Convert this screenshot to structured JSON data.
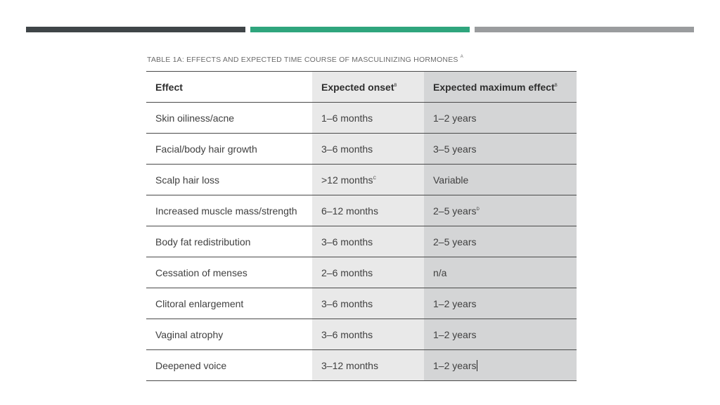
{
  "caption": {
    "text": "TABLE 1A:  EFFECTS AND EXPECTED TIME COURSE OF MASCULINIZING HORMONES",
    "superscript": "A"
  },
  "colors": {
    "bar_dark": "#3f4548",
    "bar_green": "#2fa57d",
    "bar_gray": "#9a9c9e",
    "column_2_shade": "#e9e9e9",
    "column_3_shade": "#d4d5d6"
  },
  "table": {
    "headers": [
      {
        "text": "Effect",
        "sup": ""
      },
      {
        "text": "Expected onset",
        "sup": "B"
      },
      {
        "text": "Expected maximum effect",
        "sup": "B"
      }
    ],
    "rows": [
      {
        "effect": "Skin oiliness/acne",
        "onset": "1–6 months",
        "onset_sup": "",
        "max": "1–2 years",
        "max_sup": ""
      },
      {
        "effect": "Facial/body hair growth",
        "onset": "3–6 months",
        "onset_sup": "",
        "max": "3–5 years",
        "max_sup": ""
      },
      {
        "effect": "Scalp hair loss",
        "onset": ">12 months",
        "onset_sup": "C",
        "max": "Variable",
        "max_sup": ""
      },
      {
        "effect": "Increased muscle mass/strength",
        "onset": "6–12 months",
        "onset_sup": "",
        "max": "2–5 years",
        "max_sup": "D"
      },
      {
        "effect": "Body fat redistribution",
        "onset": "3–6 months",
        "onset_sup": "",
        "max": "2–5 years",
        "max_sup": ""
      },
      {
        "effect": "Cessation of menses",
        "onset": "2–6 months",
        "onset_sup": "",
        "max": "n/a",
        "max_sup": ""
      },
      {
        "effect": "Clitoral enlargement",
        "onset": "3–6 months",
        "onset_sup": "",
        "max": "1–2 years",
        "max_sup": ""
      },
      {
        "effect": "Vaginal atrophy",
        "onset": "3–6 months",
        "onset_sup": "",
        "max": "1–2 years",
        "max_sup": ""
      },
      {
        "effect": "Deepened voice",
        "onset": "3–12 months",
        "onset_sup": "",
        "max": "1–2 years",
        "max_sup": ""
      }
    ]
  }
}
